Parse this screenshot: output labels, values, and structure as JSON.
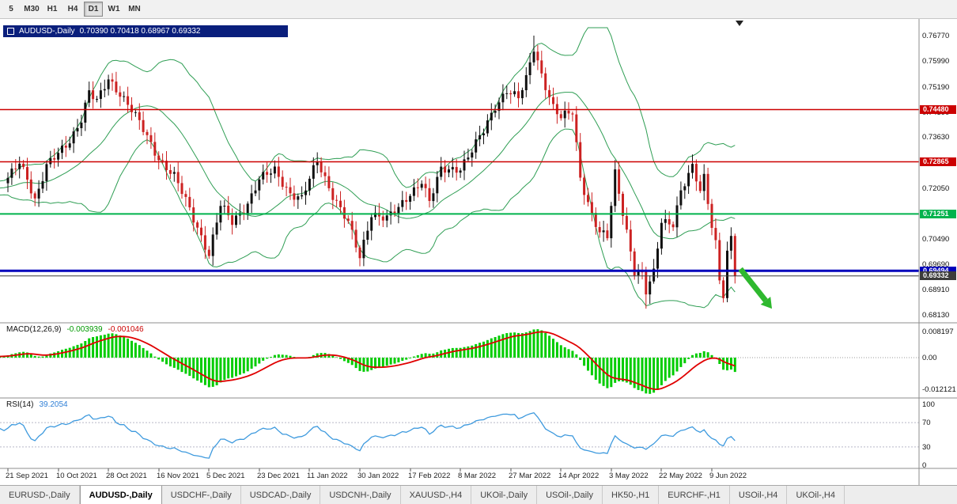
{
  "window": {
    "title_symbol": "AUDUSD-,Daily",
    "title_ohlc": "0.70390 0.70418 0.68967 0.69332"
  },
  "toolbar": {
    "timeframes": [
      {
        "label": "5",
        "active": false
      },
      {
        "label": "M30",
        "active": false
      },
      {
        "label": "H1",
        "active": false
      },
      {
        "label": "H4",
        "active": false
      },
      {
        "label": "D1",
        "active": true
      },
      {
        "label": "W1",
        "active": false
      },
      {
        "label": "MN",
        "active": false
      }
    ]
  },
  "price_axis": {
    "gridline_labels": [
      "0.76770",
      "0.75990",
      "0.75190",
      "0.74390",
      "0.73630",
      "0.72830",
      "0.72050",
      "0.71270",
      "0.70490",
      "0.69690",
      "0.68910",
      "0.68130"
    ],
    "badges": [
      {
        "text": "0.74480",
        "price": 0.7448,
        "bg": "#cc0000",
        "fg": "#ffffff"
      },
      {
        "text": "0.72865",
        "price": 0.72865,
        "bg": "#cc0000",
        "fg": "#ffffff"
      },
      {
        "text": "0.71251",
        "price": 0.71251,
        "bg": "#00b34d",
        "fg": "#ffffff"
      },
      {
        "text": "0.69494",
        "price": 0.69494,
        "bg": "#0000bb",
        "fg": "#ffffff"
      },
      {
        "text": "0.69332",
        "price": 0.69332,
        "bg": "#3c3c3c",
        "fg": "#ffffff"
      }
    ]
  },
  "indicators": {
    "macd": {
      "name": "MACD(12,26,9)",
      "main_value": "-0.003939",
      "signal_value": "-0.001046",
      "axis_labels": [
        "0.008197",
        "0.00",
        "-0.012121"
      ]
    },
    "rsi": {
      "name": "RSI(14)",
      "value": "39.2054",
      "axis_labels": [
        "100",
        "70",
        "30",
        "0"
      ]
    }
  },
  "time_axis": {
    "labels": [
      {
        "day": 0,
        "text": "21 Sep 2021"
      },
      {
        "day": 13,
        "text": "10 Oct 2021"
      },
      {
        "day": 26,
        "text": "28 Oct 2021"
      },
      {
        "day": 39,
        "text": "16 Nov 2021"
      },
      {
        "day": 52,
        "text": "5 Dec 2021"
      },
      {
        "day": 65,
        "text": "23 Dec 2021"
      },
      {
        "day": 78,
        "text": "11 Jan 2022"
      },
      {
        "day": 91,
        "text": "30 Jan 2022"
      },
      {
        "day": 104,
        "text": "17 Feb 2022"
      },
      {
        "day": 117,
        "text": "8 Mar 2022"
      },
      {
        "day": 130,
        "text": "27 Mar 2022"
      },
      {
        "day": 143,
        "text": "14 Apr 2022"
      },
      {
        "day": 156,
        "text": "3 May 2022"
      },
      {
        "day": 169,
        "text": "22 May 2022"
      },
      {
        "day": 182,
        "text": "9 Jun 2022"
      }
    ]
  },
  "tabs": [
    {
      "label": "EURUSD-,Daily",
      "active": false
    },
    {
      "label": "AUDUSD-,Daily",
      "active": true
    },
    {
      "label": "USDCHF-,Daily",
      "active": false
    },
    {
      "label": "USDCAD-,Daily",
      "active": false
    },
    {
      "label": "USDCNH-,Daily",
      "active": false
    },
    {
      "label": "XAUUSD-,H4",
      "active": false
    },
    {
      "label": "UKOil-,Daily",
      "active": false
    },
    {
      "label": "USOil-,Daily",
      "active": false
    },
    {
      "label": "HK50-,H1",
      "active": false
    },
    {
      "label": "EURCHF-,H1",
      "active": false
    },
    {
      "label": "USOil-,H4",
      "active": false
    },
    {
      "label": "UKOil-,H4",
      "active": false
    }
  ],
  "colors": {
    "candle_up": "#101010",
    "candle_down": "#cc2222",
    "bollinger": "#2f9e54",
    "macd_histogram": "#00cc00",
    "macd_signal": "#e00000",
    "rsi_line": "#3e9ade",
    "arrow": "#2eb82e"
  },
  "chart_data": {
    "type": "candlestick",
    "symbol": "AUDUSD",
    "period": "Daily",
    "visible_range": {
      "price_min": 0.67883,
      "price_max": 0.77039,
      "first_label": "21 Sep 2021",
      "last_label": "9 Jun 2022"
    },
    "levels": [
      {
        "price": 0.7448,
        "type": "resistance",
        "color": "#cc0000",
        "width": 1.4
      },
      {
        "price": 0.72865,
        "type": "resistance",
        "color": "#cc0000",
        "width": 1.4
      },
      {
        "price": 0.71251,
        "type": "support",
        "color": "#00b34d",
        "width": 2
      },
      {
        "price": 0.69494,
        "type": "support",
        "color": "#0000bb",
        "width": 3
      },
      {
        "price": 0.69332,
        "type": "current-bid",
        "color": "#3c3c3c",
        "width": 1
      }
    ],
    "overlays": [
      {
        "name": "Bollinger Bands",
        "period": 20,
        "deviation": 2
      }
    ],
    "macd_params": [
      12,
      26,
      9
    ],
    "rsi_period": 14,
    "candle_count": 189,
    "warmup_anchors": [
      [
        -25,
        0.718
      ],
      [
        -15,
        0.7215
      ],
      [
        -8,
        0.7195
      ]
    ],
    "price_anchors": [
      [
        0,
        0.723
      ],
      [
        3,
        0.7285
      ],
      [
        5,
        0.724
      ],
      [
        7,
        0.717
      ],
      [
        10,
        0.727
      ],
      [
        13,
        0.731
      ],
      [
        16,
        0.7355
      ],
      [
        19,
        0.742
      ],
      [
        21,
        0.75
      ],
      [
        23,
        0.747
      ],
      [
        26,
        0.7545
      ],
      [
        29,
        0.75
      ],
      [
        32,
        0.7445
      ],
      [
        35,
        0.7385
      ],
      [
        39,
        0.73
      ],
      [
        43,
        0.724
      ],
      [
        47,
        0.714
      ],
      [
        51,
        0.703
      ],
      [
        52,
        0.7
      ],
      [
        55,
        0.715
      ],
      [
        58,
        0.71
      ],
      [
        62,
        0.716
      ],
      [
        65,
        0.723
      ],
      [
        69,
        0.726
      ],
      [
        73,
        0.719
      ],
      [
        76,
        0.717
      ],
      [
        80,
        0.729
      ],
      [
        84,
        0.7185
      ],
      [
        88,
        0.7095
      ],
      [
        91,
        0.699
      ],
      [
        94,
        0.713
      ],
      [
        98,
        0.711
      ],
      [
        101,
        0.714
      ],
      [
        104,
        0.719
      ],
      [
        107,
        0.723
      ],
      [
        109,
        0.716
      ],
      [
        112,
        0.726
      ],
      [
        117,
        0.727
      ],
      [
        120,
        0.732
      ],
      [
        123,
        0.738
      ],
      [
        126,
        0.746
      ],
      [
        129,
        0.751
      ],
      [
        132,
        0.748
      ],
      [
        134,
        0.754
      ],
      [
        136,
        0.764
      ],
      [
        138,
        0.756
      ],
      [
        141,
        0.7455
      ],
      [
        143,
        0.742
      ],
      [
        146,
        0.744
      ],
      [
        148,
        0.724
      ],
      [
        151,
        0.7125
      ],
      [
        153,
        0.7065
      ],
      [
        155,
        0.705
      ],
      [
        157,
        0.725
      ],
      [
        160,
        0.7075
      ],
      [
        162,
        0.695
      ],
      [
        164,
        0.6935
      ],
      [
        165,
        0.688
      ],
      [
        167,
        0.694
      ],
      [
        169,
        0.7105
      ],
      [
        172,
        0.71
      ],
      [
        174,
        0.7195
      ],
      [
        177,
        0.7265
      ],
      [
        179,
        0.7195
      ],
      [
        180,
        0.724
      ],
      [
        182,
        0.7095
      ],
      [
        183,
        0.704
      ],
      [
        184,
        0.6925
      ],
      [
        185,
        0.6875
      ],
      [
        186,
        0.7
      ],
      [
        187,
        0.7047
      ],
      [
        188,
        0.69332
      ]
    ],
    "forced_extremes": [
      {
        "day": 136,
        "high": 0.7677
      },
      {
        "day": 165,
        "low": 0.6832
      },
      {
        "day": 185,
        "low": 0.6851
      }
    ],
    "annotations": [
      {
        "type": "arrow",
        "color": "#2eb82e",
        "from_day": 189.4,
        "from_price": 0.6955,
        "to_day": 195.9,
        "to_price": 0.6857
      }
    ]
  }
}
